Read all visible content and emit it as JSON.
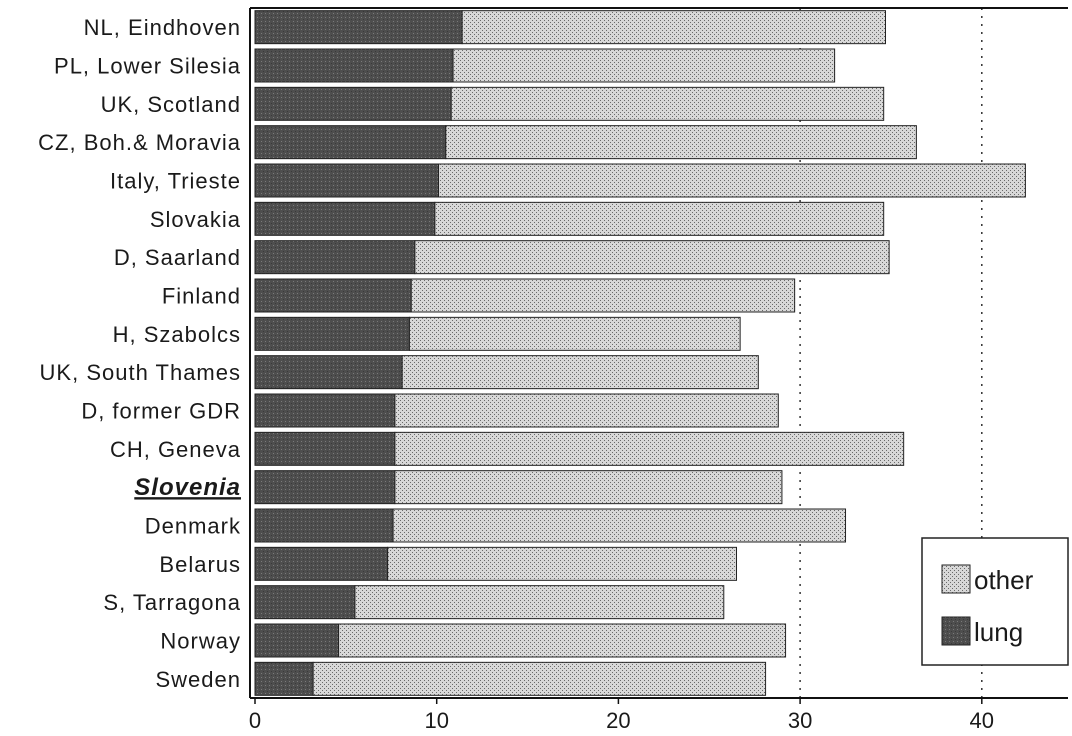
{
  "chart_data": {
    "type": "bar",
    "orientation": "horizontal",
    "stacked": true,
    "categories": [
      "NL, Eindhoven",
      "PL, Lower Silesia",
      "UK, Scotland",
      "CZ, Boh.& Moravia",
      "Italy, Trieste",
      "Slovakia",
      "D, Saarland",
      "Finland",
      "H, Szabolcs",
      "UK, South Thames",
      "D, former GDR",
      "CH, Geneva",
      "Slovenia",
      "Denmark",
      "Belarus",
      "S, Tarragona",
      "Norway",
      "Sweden"
    ],
    "highlight_category": "Slovenia",
    "series": [
      {
        "name": "lung",
        "color": "#555555",
        "values": [
          11.4,
          10.9,
          10.8,
          10.5,
          10.1,
          9.9,
          8.8,
          8.6,
          8.5,
          8.1,
          7.7,
          7.7,
          7.7,
          7.6,
          7.3,
          5.5,
          4.6,
          3.2
        ]
      },
      {
        "name": "other",
        "color": "#c8c8c8",
        "values": [
          23.3,
          21.0,
          23.8,
          25.9,
          32.3,
          24.7,
          26.1,
          21.1,
          18.2,
          19.6,
          21.1,
          28.0,
          21.3,
          24.9,
          19.2,
          20.3,
          24.6,
          24.9
        ]
      }
    ],
    "xlim": [
      0,
      45
    ],
    "xticks": [
      "0",
      "10",
      "20",
      "30",
      "40"
    ],
    "reference_lines": [
      30,
      40
    ],
    "legend": {
      "position": "bottom-right",
      "items": [
        {
          "name": "other"
        },
        {
          "name": "lung"
        }
      ]
    },
    "title": "",
    "xlabel": "",
    "ylabel": ""
  }
}
